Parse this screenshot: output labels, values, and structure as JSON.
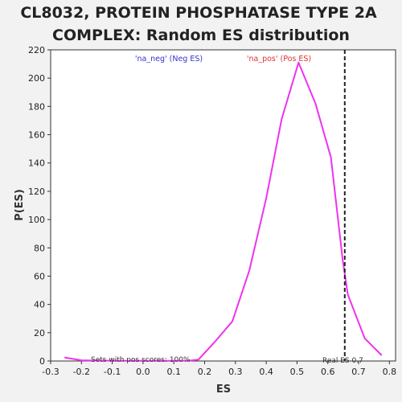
{
  "chart_data": {
    "type": "line",
    "title_lines": [
      "CL8032, PROTEIN PHOSPHATASE TYPE 2A",
      "COMPLEX: Random ES distribution"
    ],
    "xlabel": "ES",
    "ylabel": "P(ES)",
    "xlim": [
      -0.3,
      0.82
    ],
    "ylim": [
      0,
      220
    ],
    "xticks": [
      -0.3,
      -0.2,
      -0.1,
      0.0,
      0.1,
      0.2,
      0.3,
      0.4,
      0.5,
      0.6,
      0.7,
      0.8
    ],
    "xtick_labels": [
      "-0.3",
      "-0.2",
      "-0.1",
      "0.0",
      "0.1",
      "0.2",
      "0.3",
      "0.4",
      "0.5",
      "0.6",
      "0.7",
      "0.8"
    ],
    "yticks": [
      0,
      20,
      40,
      60,
      80,
      100,
      120,
      140,
      160,
      180,
      200,
      220
    ],
    "ytick_labels": [
      "0",
      "20",
      "40",
      "60",
      "80",
      "100",
      "120",
      "140",
      "160",
      "180",
      "200",
      "220"
    ],
    "grid": false,
    "legend": [
      {
        "label": "'na_neg' (Neg ES)",
        "color": "#3333cc"
      },
      {
        "label": "'na_pos' (Pos ES)",
        "color": "#dd3333"
      }
    ],
    "series": [
      {
        "color": "#ee33ee",
        "x": [
          -0.255,
          -0.2,
          -0.15,
          -0.1,
          -0.05,
          0.0,
          0.05,
          0.1,
          0.15,
          0.18,
          0.235,
          0.29,
          0.345,
          0.4,
          0.45,
          0.505,
          0.56,
          0.61,
          0.648,
          0.665,
          0.72,
          0.775
        ],
        "y": [
          2.5,
          0.5,
          0.3,
          0.2,
          0.1,
          0.1,
          0.1,
          0.1,
          0.2,
          1,
          14,
          28,
          64,
          115,
          171,
          211,
          182,
          144,
          72,
          47,
          16,
          4
        ]
      }
    ],
    "real_es": {
      "value": 0.655,
      "label": "Real ES 0.7"
    },
    "annotation": "Sets with pos scores: 100%"
  }
}
